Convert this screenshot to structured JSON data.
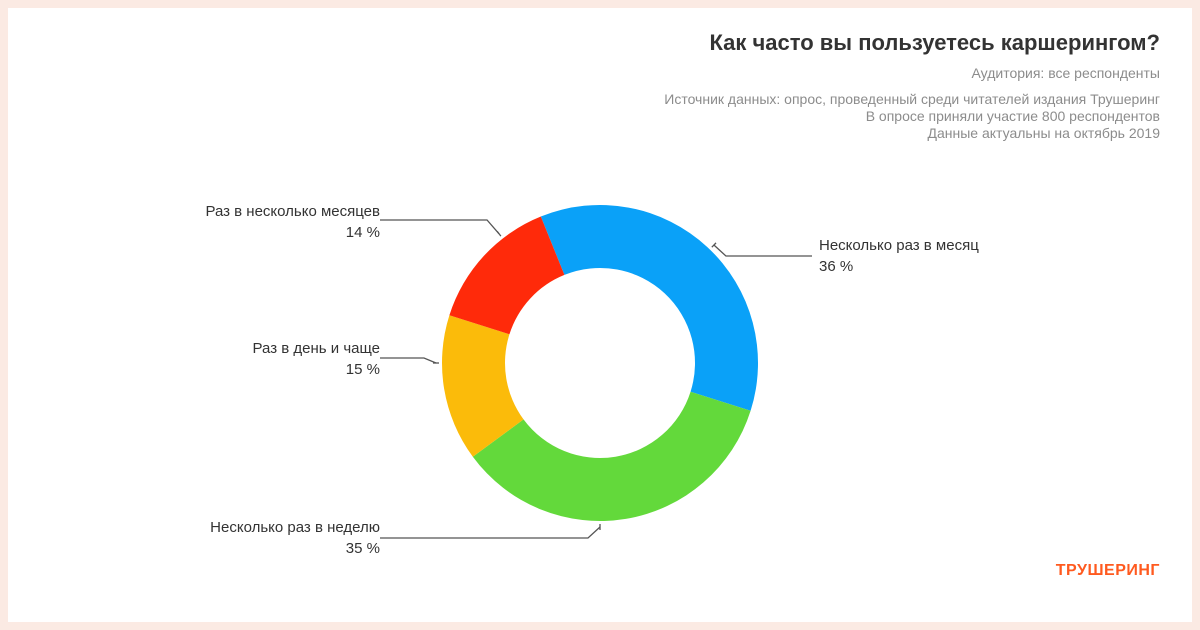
{
  "header": {
    "title": "Как часто вы пользуетесь каршерингом?",
    "audience": "Аудитория: все респонденты",
    "source_lines": [
      "Источник данных: опрос, проведенный среди читателей издания Трушеринг",
      "В опросе приняли участие 800 респондентов",
      "Данные актуальны на октябрь 2019"
    ]
  },
  "brand": "ТРУШЕРИНГ",
  "chart_data": {
    "type": "pie",
    "subtype": "donut",
    "title": "Как часто вы пользуетесь каршерингом?",
    "unit": "%",
    "slices": [
      {
        "label": "Несколько раз в месяц",
        "value": 36,
        "value_label": "36 %",
        "color": "#0aa1f8"
      },
      {
        "label": "Несколько раз в неделю",
        "value": 35,
        "value_label": "35 %",
        "color": "#63d93b"
      },
      {
        "label": "Раз в день и чаще",
        "value": 15,
        "value_label": "15 %",
        "color": "#fbbb0a"
      },
      {
        "label": "Раз в несколько месяцев",
        "value": 14,
        "value_label": "14 %",
        "color": "#ff2a0a"
      }
    ]
  }
}
